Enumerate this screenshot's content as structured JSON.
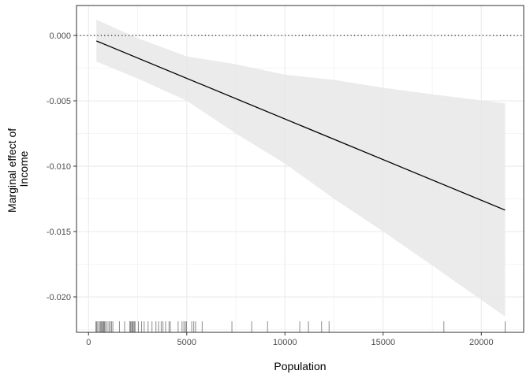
{
  "chart_data": {
    "type": "line",
    "title": "",
    "xlabel": "Population",
    "ylabel_lines": [
      "Marginal effect of",
      "Income"
    ],
    "xlim": [
      -614,
      22157
    ],
    "ylim": [
      -0.02271,
      0.00229
    ],
    "x_ticks": [
      0,
      5000,
      10000,
      15000,
      20000
    ],
    "x_tick_labels": [
      "0",
      "5000",
      "10000",
      "15000",
      "20000"
    ],
    "y_ticks": [
      0,
      -0.005,
      -0.01,
      -0.015,
      -0.02
    ],
    "y_tick_labels": [
      "0.000",
      "-0.005",
      "-0.010",
      "-0.015",
      "-0.020"
    ],
    "grid": true,
    "reference_line": {
      "y": 0,
      "style": "dotted"
    },
    "line": {
      "x": [
        400,
        21210
      ],
      "y": [
        -0.00042,
        -0.01336
      ]
    },
    "ribbon": {
      "x": [
        400,
        2500,
        5000,
        7500,
        10000,
        12500,
        15000,
        17500,
        21210
      ],
      "lower": [
        -0.002,
        -0.0033,
        -0.005,
        -0.0075,
        -0.0098,
        -0.0125,
        -0.015,
        -0.0176,
        -0.0215
      ],
      "upper": [
        0.0012,
        -0.0002,
        -0.0016,
        -0.0022,
        -0.003,
        -0.0034,
        -0.004,
        -0.0045,
        -0.0052
      ]
    },
    "rug_x": [
      374,
      413,
      466,
      546,
      599,
      639,
      679,
      732,
      772,
      812,
      865,
      945,
      1038,
      1104,
      1171,
      1237,
      1570,
      1835,
      2101,
      2141,
      2194,
      2234,
      2274,
      2327,
      2367,
      2540,
      2700,
      2832,
      3032,
      3231,
      3431,
      3564,
      3697,
      3790,
      3923,
      4096,
      4162,
      4561,
      4760,
      4853,
      4933,
      4986,
      5252,
      5358,
      5451,
      5784,
      7300,
      8306,
      9113,
      10754,
      11198,
      11867,
      12246,
      18093,
      21210
    ],
    "colors": {
      "line": "#000000",
      "ribbon": "#e8e8e8",
      "rug": "#7f7f7f",
      "grid": "#ebebeb",
      "panel_border": "#333333"
    }
  }
}
